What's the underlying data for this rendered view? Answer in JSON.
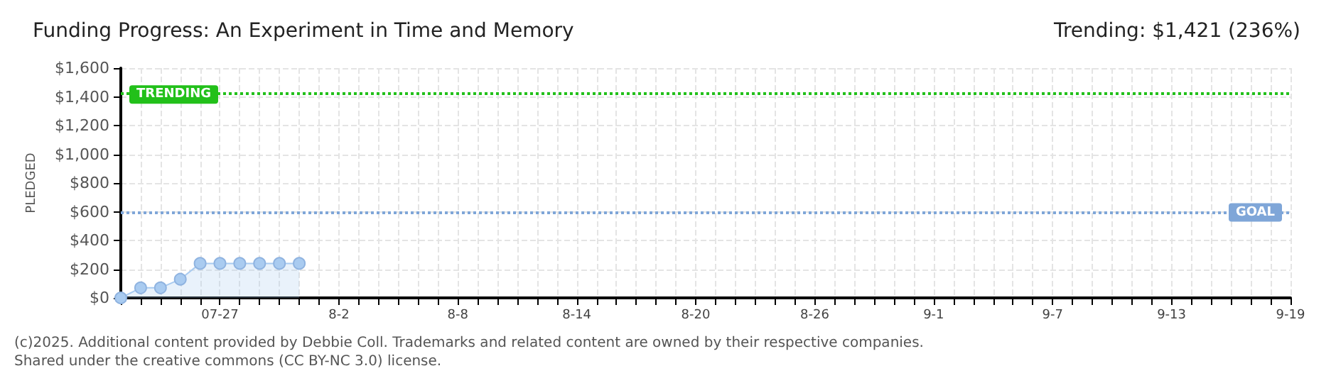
{
  "chart_data": {
    "type": "area",
    "title": "Funding Progress: An Experiment in Time and Memory",
    "subtitle": "Trending: $1,421 (236%)",
    "ylabel": "PLEDGED",
    "annotations": [
      "(c)2025. Additional content provided by Debbie Coll. Trademarks and related content are owned by their respective companies.",
      "Shared under the creative commons (CC BY-NC 3.0) license."
    ],
    "categories": [
      null,
      null,
      null,
      null,
      null,
      "07-27",
      null,
      null,
      null,
      null,
      null,
      "8-2",
      null,
      null,
      null,
      null,
      null,
      "8-8",
      null,
      null,
      null,
      null,
      null,
      "8-14",
      null,
      null,
      null,
      null,
      null,
      "8-20",
      null,
      null,
      null,
      null,
      null,
      "8-26",
      null,
      null,
      null,
      null,
      null,
      "9-1",
      null,
      null,
      null,
      null,
      null,
      "9-7",
      null,
      null,
      null,
      null,
      null,
      "9-13",
      null,
      null,
      null,
      null,
      null,
      "9-19"
    ],
    "series": [
      {
        "color": "#a9cbf0",
        "values": [
          0,
          70,
          70,
          130,
          240,
          240,
          240,
          240,
          240,
          240,
          null,
          null,
          null,
          null,
          null,
          null,
          null,
          null,
          null,
          null,
          null,
          null,
          null,
          null,
          null,
          null,
          null,
          null,
          null,
          null,
          null,
          null,
          null,
          null,
          null,
          null,
          null,
          null,
          null,
          null,
          null,
          null,
          null,
          null,
          null,
          null,
          null,
          null,
          null,
          null,
          null,
          null,
          null,
          null,
          null,
          null,
          null,
          null,
          null,
          null
        ]
      }
    ],
    "ylim": [
      0,
      1600
    ],
    "yticks": [
      {
        "value": 0,
        "label": "$0"
      },
      {
        "value": 200,
        "label": "$200"
      },
      {
        "value": 400,
        "label": "$400"
      },
      {
        "value": 600,
        "label": "$600"
      },
      {
        "value": 800,
        "label": "$800"
      },
      {
        "value": 1000,
        "label": "$1,000"
      },
      {
        "value": 1200,
        "label": "$1,200"
      },
      {
        "value": 1400,
        "label": "$1,400"
      },
      {
        "value": 1600,
        "label": "$1,600"
      }
    ],
    "ref_lines": [
      {
        "axis": "y",
        "value": 1421,
        "label": "TRENDING",
        "color": "#22c01a",
        "line_style": "dotted"
      },
      {
        "axis": "y",
        "value": 600,
        "label": "GOAL",
        "color": "#7fa6d8",
        "line_style": "dotted"
      }
    ],
    "grid": true,
    "marker": "circle",
    "line_style": "solid"
  }
}
